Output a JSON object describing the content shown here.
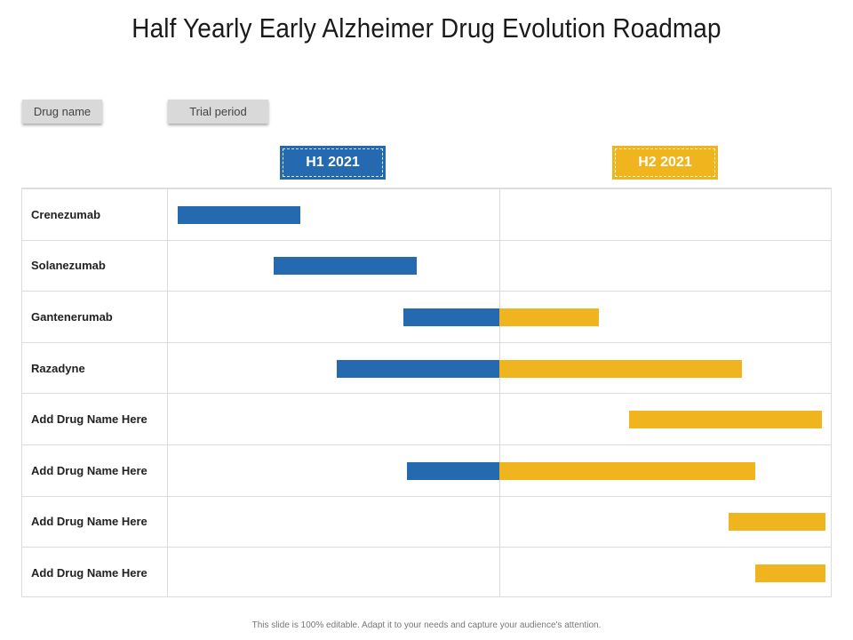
{
  "title": "Half Yearly Early Alzheimer Drug Evolution Roadmap",
  "legend": {
    "drug_name": "Drug name",
    "trial_period": "Trial period"
  },
  "periods": [
    {
      "label": "H1 2021",
      "color": "#2569b0"
    },
    {
      "label": "H2 2021",
      "color": "#f0b51e"
    }
  ],
  "rows": [
    {
      "name": "Crenezumab",
      "h1": [
        0.03,
        0.4
      ],
      "h2": null
    },
    {
      "name": "Solanezumab",
      "h1": [
        0.32,
        0.75
      ],
      "h2": null
    },
    {
      "name": "Gantenerumab",
      "h1": [
        0.71,
        1.0
      ],
      "h2": [
        0.0,
        0.3
      ]
    },
    {
      "name": "Razadyne",
      "h1": [
        0.51,
        1.0
      ],
      "h2": [
        0.0,
        0.73
      ]
    },
    {
      "name": "Add Drug Name Here",
      "h1": null,
      "h2": [
        0.39,
        0.97
      ]
    },
    {
      "name": "Add Drug Name Here",
      "h1": [
        0.72,
        1.0
      ],
      "h2": [
        0.0,
        0.77
      ]
    },
    {
      "name": "Add Drug Name Here",
      "h1": null,
      "h2": [
        0.69,
        0.98
      ]
    },
    {
      "name": "Add Drug Name Here",
      "h1": null,
      "h2": [
        0.77,
        0.98
      ]
    }
  ],
  "footer": "This slide is 100% editable. Adapt it to your needs and capture your audience's attention."
}
